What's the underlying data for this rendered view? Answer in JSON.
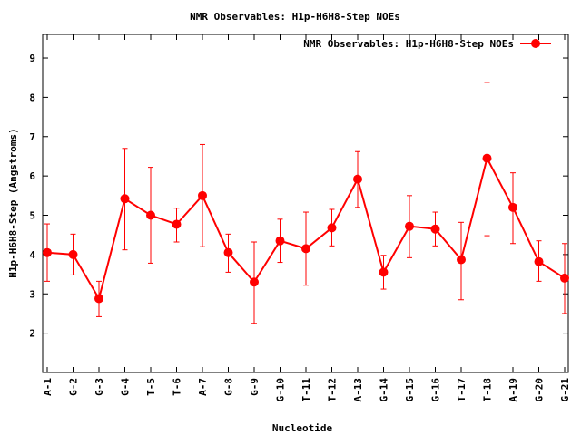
{
  "chart_data": {
    "type": "line",
    "title": "NMR Observables: H1p-H6H8-Step NOEs",
    "xlabel": "Nucleotide",
    "ylabel": "H1p-H6H8-Step (Angstroms)",
    "ylim": [
      1,
      9.6
    ],
    "yticks": [
      2,
      3,
      4,
      5,
      6,
      7,
      8,
      9
    ],
    "legend_position": "top-right",
    "grid": false,
    "series_color": "#ff0000",
    "categories": [
      "A-1",
      "G-2",
      "G-3",
      "G-4",
      "T-5",
      "T-6",
      "A-7",
      "G-8",
      "G-9",
      "G-10",
      "T-11",
      "T-12",
      "A-13",
      "G-14",
      "G-15",
      "G-16",
      "T-17",
      "T-18",
      "A-19",
      "G-20",
      "G-21"
    ],
    "series": [
      {
        "name": "NMR Observables: H1p-H6H8-Step NOEs",
        "values": [
          4.05,
          4.0,
          2.88,
          5.42,
          5.0,
          4.77,
          5.5,
          4.05,
          3.3,
          4.35,
          4.15,
          4.68,
          5.92,
          3.55,
          4.72,
          4.65,
          3.87,
          6.45,
          5.2,
          3.82,
          3.4
        ],
        "err_low": [
          3.32,
          3.48,
          2.42,
          4.12,
          3.78,
          4.32,
          4.2,
          3.55,
          2.25,
          3.8,
          3.22,
          4.22,
          5.2,
          3.12,
          3.92,
          4.22,
          2.85,
          4.48,
          4.28,
          3.32,
          2.5
        ],
        "err_high": [
          4.78,
          4.52,
          3.32,
          6.7,
          6.22,
          5.18,
          6.8,
          4.52,
          4.32,
          4.9,
          5.08,
          5.15,
          6.62,
          3.98,
          5.5,
          5.08,
          4.82,
          8.38,
          6.08,
          4.35,
          4.28
        ]
      }
    ]
  }
}
